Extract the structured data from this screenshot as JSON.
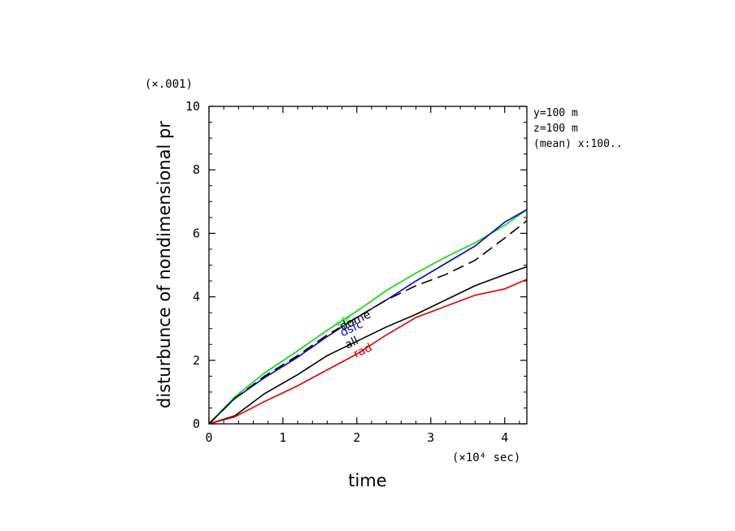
{
  "chart_data": {
    "type": "line",
    "title": "",
    "xlabel": "time",
    "ylabel": "disturbunce of nondimensional pr",
    "x_unit_label": "(×10⁴ sec)",
    "y_scale_label": "(×.001)",
    "xlim": [
      0,
      4.3
    ],
    "ylim": [
      0,
      10
    ],
    "x_ticks": [
      0,
      1,
      2,
      3,
      4
    ],
    "y_ticks": [
      0,
      2,
      4,
      6,
      8,
      10
    ],
    "x_tick_labels": [
      "0",
      "1",
      "2",
      "3",
      "4"
    ],
    "y_tick_labels": [
      "0",
      "2",
      "4",
      "6",
      "8",
      "10"
    ],
    "info_lines": [
      "y=100 m",
      "z=100 m",
      "(mean) x:100.."
    ],
    "grid": false,
    "series": [
      {
        "name": "sfc",
        "color": "#00dd00",
        "dash": false,
        "label_at": [
          1.85,
          3.1
        ],
        "x": [
          0,
          0.35,
          0.75,
          1.2,
          1.6,
          2.0,
          2.4,
          2.8,
          3.2,
          3.6,
          4.0,
          4.3
        ],
        "y": [
          0,
          0.85,
          1.6,
          2.3,
          2.95,
          3.55,
          4.2,
          4.75,
          5.25,
          5.7,
          6.25,
          6.75
        ]
      },
      {
        "name": "dsfc",
        "color": "#0000cc",
        "dash": false,
        "label_at": [
          1.95,
          2.9
        ],
        "x": [
          0,
          0.35,
          0.75,
          1.2,
          1.6,
          2.0,
          2.4,
          2.8,
          3.2,
          3.6,
          4.0,
          4.3
        ],
        "y": [
          0,
          0.8,
          1.45,
          2.1,
          2.75,
          3.35,
          3.9,
          4.5,
          5.05,
          5.6,
          6.35,
          6.75
        ]
      },
      {
        "name": "dome",
        "color": "#000000",
        "dash": true,
        "label_at": [
          2.0,
          3.15
        ],
        "x": [
          0,
          0.35,
          0.75,
          1.2,
          1.6,
          2.0,
          2.4,
          2.8,
          3.2,
          3.6,
          4.0,
          4.3
        ],
        "y": [
          0,
          0.8,
          1.5,
          2.15,
          2.8,
          3.35,
          3.9,
          4.35,
          4.7,
          5.15,
          5.85,
          6.4
        ]
      },
      {
        "name": "all",
        "color": "#000000",
        "dash": false,
        "label_at": [
          1.95,
          2.45
        ],
        "x": [
          0,
          0.35,
          0.75,
          1.2,
          1.6,
          2.0,
          2.4,
          2.8,
          3.2,
          3.6,
          4.0,
          4.3
        ],
        "y": [
          0,
          0.25,
          0.95,
          1.55,
          2.15,
          2.6,
          3.05,
          3.45,
          3.9,
          4.35,
          4.7,
          4.95
        ]
      },
      {
        "name": "rad",
        "color": "#dd0000",
        "dash": false,
        "label_at": [
          2.1,
          2.2
        ],
        "x": [
          0,
          0.35,
          0.75,
          1.2,
          1.6,
          2.0,
          2.4,
          2.8,
          3.2,
          3.6,
          4.0,
          4.3
        ],
        "y": [
          0,
          0.22,
          0.7,
          1.2,
          1.7,
          2.2,
          2.8,
          3.35,
          3.7,
          4.05,
          4.25,
          4.55
        ]
      }
    ]
  }
}
